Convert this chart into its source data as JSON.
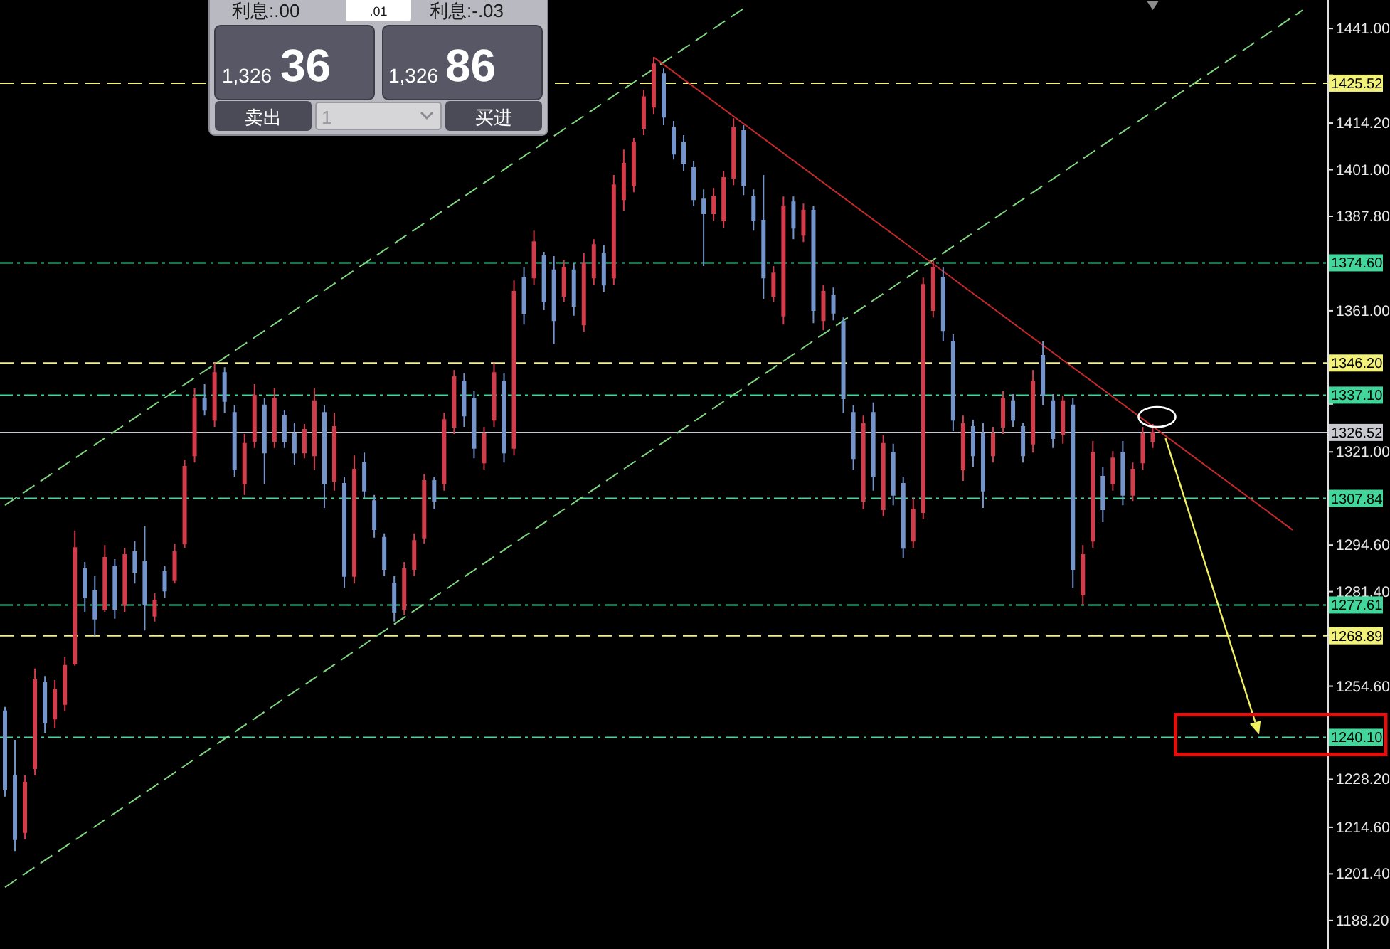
{
  "chart_data": {
    "type": "candlestick",
    "categories": [
      null,
      null,
      null,
      null,
      null,
      null,
      null,
      null,
      null,
      null,
      null,
      null,
      null,
      null,
      null,
      null,
      null,
      null,
      null,
      null,
      null,
      null,
      null,
      null,
      null,
      null,
      null,
      null,
      null,
      null,
      null,
      null,
      null,
      null,
      null,
      null,
      null,
      null,
      null,
      null,
      null,
      null,
      null,
      null,
      null,
      null,
      null,
      null,
      null,
      null,
      null,
      null,
      null,
      null,
      null,
      null,
      null,
      null,
      null,
      null,
      null,
      null,
      null,
      null,
      null,
      null,
      null,
      null,
      null,
      null,
      null,
      null,
      null,
      null,
      null,
      null,
      null,
      null,
      null,
      null,
      null,
      null,
      null,
      null,
      null,
      null,
      null,
      null,
      null,
      null,
      null,
      null,
      null,
      null,
      null,
      null,
      null,
      null,
      null,
      null,
      null,
      null,
      null,
      null,
      null,
      null,
      null,
      null,
      null,
      null,
      null,
      null,
      null,
      null,
      null,
      null,
      null,
      null,
      null,
      null,
      null,
      null,
      null,
      null,
      null,
      null,
      null,
      null,
      null,
      null,
      null,
      null,
      null
    ],
    "ohlc": [
      [
        1247.5,
        1248.7,
        1223.3,
        1225.3
      ],
      [
        1229.3,
        1239.4,
        1207.9,
        1211.2
      ],
      [
        1213.2,
        1229.3,
        1211.2,
        1227.3
      ],
      [
        1231.3,
        1259.6,
        1229.3,
        1256.3
      ],
      [
        1255.5,
        1257.5,
        1241.4,
        1244.2
      ],
      [
        1245.4,
        1256.3,
        1242.6,
        1253.5
      ],
      [
        1249.5,
        1262.8,
        1247.5,
        1260.4
      ],
      [
        1261.0,
        1298.7,
        1260.4,
        1293.8
      ],
      [
        1287.8,
        1289.8,
        1275.7,
        1279.7
      ],
      [
        1281.7,
        1285.8,
        1268.8,
        1273.7
      ],
      [
        1276.5,
        1294.6,
        1275.7,
        1291.0
      ],
      [
        1288.6,
        1290.6,
        1273.7,
        1276.5
      ],
      [
        1277.7,
        1293.8,
        1275.7,
        1291.8
      ],
      [
        1292.6,
        1295.8,
        1283.7,
        1287.0
      ],
      [
        1289.8,
        1299.9,
        1270.4,
        1277.7
      ],
      [
        1274.5,
        1280.9,
        1272.9,
        1278.9
      ],
      [
        1287.0,
        1288.6,
        1279.7,
        1281.7
      ],
      [
        1284.6,
        1295.0,
        1283.7,
        1292.6
      ],
      [
        1295.0,
        1318.8,
        1293.8,
        1316.8
      ],
      [
        1320.0,
        1339.0,
        1318.0,
        1336.2
      ],
      [
        1336.2,
        1340.2,
        1331.3,
        1332.9
      ],
      [
        1330.1,
        1346.2,
        1328.1,
        1343.4
      ],
      [
        1343.4,
        1345.0,
        1332.1,
        1335.4
      ],
      [
        1332.1,
        1334.2,
        1314.0,
        1316.0
      ],
      [
        1312.0,
        1326.1,
        1308.8,
        1323.3
      ],
      [
        1324.1,
        1340.2,
        1322.1,
        1337.0
      ],
      [
        1334.2,
        1336.2,
        1312.0,
        1320.8
      ],
      [
        1324.1,
        1339.0,
        1322.1,
        1336.2
      ],
      [
        1331.3,
        1332.9,
        1322.1,
        1324.1
      ],
      [
        1326.1,
        1329.3,
        1317.2,
        1320.8
      ],
      [
        1320.8,
        1328.9,
        1319.2,
        1327.3
      ],
      [
        1320.0,
        1339.0,
        1316.0,
        1335.4
      ],
      [
        1332.1,
        1334.2,
        1305.1,
        1312.0
      ],
      [
        1312.8,
        1332.1,
        1310.0,
        1328.1
      ],
      [
        1312.0,
        1314.0,
        1282.5,
        1285.8
      ],
      [
        1285.8,
        1320.0,
        1283.7,
        1316.0
      ],
      [
        1318.0,
        1320.8,
        1307.9,
        1310.0
      ],
      [
        1307.1,
        1308.8,
        1296.7,
        1299.1
      ],
      [
        1296.7,
        1297.9,
        1285.8,
        1287.8
      ],
      [
        1283.7,
        1285.8,
        1272.9,
        1275.7
      ],
      [
        1276.5,
        1289.8,
        1274.9,
        1287.8
      ],
      [
        1287.8,
        1297.9,
        1285.8,
        1295.8
      ],
      [
        1296.7,
        1314.8,
        1295.0,
        1312.8
      ],
      [
        1312.8,
        1314.0,
        1304.7,
        1307.1
      ],
      [
        1312.0,
        1332.1,
        1310.0,
        1330.1
      ],
      [
        1328.1,
        1344.2,
        1326.1,
        1342.2
      ],
      [
        1341.0,
        1343.4,
        1328.1,
        1331.3
      ],
      [
        1336.2,
        1338.2,
        1319.2,
        1322.1
      ],
      [
        1318.0,
        1328.1,
        1316.0,
        1326.1
      ],
      [
        1330.1,
        1346.2,
        1328.1,
        1343.4
      ],
      [
        1341.0,
        1343.4,
        1318.0,
        1320.8
      ],
      [
        1322.1,
        1369.6,
        1320.0,
        1366.4
      ],
      [
        1370.4,
        1373.3,
        1357.1,
        1360.4
      ],
      [
        1370.4,
        1383.7,
        1368.4,
        1380.5
      ],
      [
        1376.5,
        1377.7,
        1361.2,
        1363.6
      ],
      [
        1372.5,
        1376.5,
        1351.5,
        1358.3
      ],
      [
        1365.2,
        1375.3,
        1363.6,
        1373.3
      ],
      [
        1372.5,
        1374.5,
        1359.6,
        1362.4
      ],
      [
        1357.1,
        1377.3,
        1355.1,
        1374.5
      ],
      [
        1370.4,
        1381.3,
        1368.4,
        1379.7
      ],
      [
        1377.3,
        1379.7,
        1366.4,
        1368.4
      ],
      [
        1370.4,
        1399.5,
        1368.4,
        1396.6
      ],
      [
        1392.6,
        1406.7,
        1389.4,
        1402.7
      ],
      [
        1396.6,
        1410.0,
        1394.6,
        1408.7
      ],
      [
        1412.8,
        1423.7,
        1410.8,
        1421.6
      ],
      [
        1418.8,
        1432.9,
        1416.8,
        1430.9
      ],
      [
        1428.1,
        1429.7,
        1413.6,
        1416.0
      ],
      [
        1412.8,
        1414.8,
        1403.9,
        1405.5
      ],
      [
        1408.7,
        1410.8,
        1400.7,
        1402.7
      ],
      [
        1401.5,
        1403.5,
        1390.6,
        1392.6
      ],
      [
        1392.6,
        1395.4,
        1373.7,
        1388.6
      ],
      [
        1388.6,
        1395.8,
        1386.6,
        1393.4
      ],
      [
        1386.6,
        1400.7,
        1384.5,
        1398.7
      ],
      [
        1398.7,
        1415.6,
        1396.6,
        1412.8
      ],
      [
        1412.0,
        1413.6,
        1393.8,
        1396.6
      ],
      [
        1393.4,
        1395.4,
        1383.7,
        1386.6
      ],
      [
        1386.6,
        1399.5,
        1364.4,
        1370.4
      ],
      [
        1365.2,
        1373.7,
        1363.6,
        1371.6
      ],
      [
        1359.6,
        1393.4,
        1357.1,
        1390.6
      ],
      [
        1391.8,
        1393.4,
        1381.3,
        1384.5
      ],
      [
        1382.5,
        1391.4,
        1380.5,
        1389.4
      ],
      [
        1389.4,
        1390.6,
        1357.5,
        1361.2
      ],
      [
        1358.3,
        1368.4,
        1355.5,
        1366.4
      ],
      [
        1365.2,
        1367.6,
        1358.3,
        1360.4
      ],
      [
        1357.9,
        1359.1,
        1332.1,
        1336.2
      ],
      [
        1332.1,
        1334.2,
        1316.0,
        1319.2
      ],
      [
        1307.1,
        1331.3,
        1304.7,
        1328.9
      ],
      [
        1332.1,
        1335.0,
        1310.0,
        1314.0
      ],
      [
        1304.7,
        1325.7,
        1302.7,
        1323.3
      ],
      [
        1320.8,
        1323.3,
        1305.9,
        1308.8
      ],
      [
        1312.0,
        1314.0,
        1291.0,
        1293.8
      ],
      [
        1295.8,
        1307.9,
        1293.8,
        1304.7
      ],
      [
        1303.9,
        1370.4,
        1301.9,
        1368.4
      ],
      [
        1361.2,
        1375.3,
        1359.1,
        1373.3
      ],
      [
        1370.4,
        1373.3,
        1352.3,
        1355.5
      ],
      [
        1352.3,
        1354.3,
        1326.9,
        1330.1
      ],
      [
        1316.0,
        1331.3,
        1312.8,
        1328.9
      ],
      [
        1328.1,
        1330.1,
        1316.8,
        1320.0
      ],
      [
        1326.1,
        1329.3,
        1305.1,
        1310.0
      ],
      [
        1320.0,
        1328.1,
        1318.0,
        1326.1
      ],
      [
        1328.1,
        1338.2,
        1326.1,
        1336.2
      ],
      [
        1335.4,
        1337.4,
        1328.1,
        1330.1
      ],
      [
        1328.1,
        1329.3,
        1318.0,
        1320.0
      ],
      [
        1323.3,
        1344.2,
        1320.8,
        1341.0
      ],
      [
        1348.3,
        1352.3,
        1334.2,
        1337.0
      ],
      [
        1335.4,
        1337.4,
        1322.1,
        1324.9
      ],
      [
        1326.1,
        1337.0,
        1323.3,
        1335.4
      ],
      [
        1334.2,
        1336.2,
        1282.5,
        1287.8
      ],
      [
        1280.5,
        1294.6,
        1277.7,
        1291.8
      ],
      [
        1295.8,
        1324.1,
        1293.8,
        1320.8
      ],
      [
        1314.0,
        1316.8,
        1301.1,
        1304.7
      ],
      [
        1312.0,
        1321.2,
        1310.0,
        1319.2
      ],
      [
        1320.8,
        1324.1,
        1305.9,
        1308.8
      ],
      [
        1308.8,
        1318.0,
        1307.1,
        1316.0
      ],
      [
        1318.0,
        1328.1,
        1316.0,
        1326.1
      ],
      [
        1324.1,
        1328.9,
        1322.1,
        1326.5
      ],
      null,
      null,
      null,
      null,
      null,
      null,
      null,
      null,
      null,
      null,
      null,
      null,
      null,
      null,
      null,
      null,
      null
    ],
    "colors": [
      "#7494cc",
      "#7494cc",
      "#d23c4b",
      "#d23c4b",
      "#7494cc",
      "#d23c4b",
      "#d23c4b",
      "#d23c4b",
      "#7494cc",
      "#7494cc",
      "#d23c4b",
      "#7494cc",
      "#d23c4b",
      "#7494cc",
      "#7494cc",
      "#d23c4b",
      "#7494cc",
      "#d23c4b",
      "#d23c4b",
      "#d23c4b",
      "#7494cc",
      "#d23c4b",
      "#7494cc",
      "#7494cc",
      "#d23c4b",
      "#d23c4b",
      "#7494cc",
      "#d23c4b",
      "#7494cc",
      "#7494cc",
      "#d23c4b",
      "#d23c4b",
      "#7494cc",
      "#d23c4b",
      "#7494cc",
      "#d23c4b",
      "#7494cc",
      "#7494cc",
      "#7494cc",
      "#7494cc",
      "#d23c4b",
      "#d23c4b",
      "#d23c4b",
      "#7494cc",
      "#d23c4b",
      "#d23c4b",
      "#7494cc",
      "#7494cc",
      "#d23c4b",
      "#d23c4b",
      "#7494cc",
      "#d23c4b",
      "#7494cc",
      "#d23c4b",
      "#7494cc",
      "#7494cc",
      "#d23c4b",
      "#7494cc",
      "#d23c4b",
      "#d23c4b",
      "#7494cc",
      "#d23c4b",
      "#d23c4b",
      "#d23c4b",
      "#d23c4b",
      "#d23c4b",
      "#7494cc",
      "#7494cc",
      "#7494cc",
      "#7494cc",
      "#7494cc",
      "#d23c4b",
      "#d23c4b",
      "#d23c4b",
      "#7494cc",
      "#7494cc",
      "#7494cc",
      "#d23c4b",
      "#d23c4b",
      "#7494cc",
      "#d23c4b",
      "#7494cc",
      "#d23c4b",
      "#7494cc",
      "#7494cc",
      "#7494cc",
      "#d23c4b",
      "#7494cc",
      "#d23c4b",
      "#7494cc",
      "#7494cc",
      "#d23c4b",
      "#d23c4b",
      "#d23c4b",
      "#7494cc",
      "#7494cc",
      "#d23c4b",
      "#7494cc",
      "#7494cc",
      "#d23c4b",
      "#d23c4b",
      "#7494cc",
      "#7494cc",
      "#d23c4b",
      "#7494cc",
      "#7494cc",
      "#d23c4b",
      "#7494cc",
      "#d23c4b",
      "#d23c4b",
      "#7494cc",
      "#d23c4b",
      "#7494cc",
      "#d23c4b",
      "#d23c4b",
      "#d23c4b",
      null,
      null,
      null,
      null,
      null,
      null,
      null,
      null,
      null,
      null,
      null,
      null,
      null,
      null,
      null,
      null,
      null
    ],
    "ylim": [
      1180.1,
      1449.1
    ],
    "yticks": [
      {
        "value": 1441,
        "label": "1441.00"
      },
      {
        "value": 1427.8,
        "label": null
      },
      {
        "value": 1414.2,
        "label": "1414.20"
      },
      {
        "value": 1401,
        "label": "1401.00"
      },
      {
        "value": 1387.8,
        "label": "1387.80"
      },
      {
        "value": 1374.6,
        "label": null
      },
      {
        "value": 1361,
        "label": "1361.00"
      },
      {
        "value": 1347.8,
        "label": null
      },
      {
        "value": 1334.6,
        "label": null
      },
      {
        "value": 1321,
        "label": "1321.00"
      },
      {
        "value": 1307.8,
        "label": null
      },
      {
        "value": 1294.6,
        "label": "1294.60"
      },
      {
        "value": 1281.4,
        "label": "1281.40"
      },
      {
        "value": 1268.2,
        "label": null
      },
      {
        "value": 1254.6,
        "label": "1254.60"
      },
      {
        "value": 1241.4,
        "label": null
      },
      {
        "value": 1228.2,
        "label": "1228.20"
      },
      {
        "value": 1214.6,
        "label": "1214.60"
      },
      {
        "value": 1201.4,
        "label": "1201.40"
      },
      {
        "value": 1188.2,
        "label": "1188.20"
      }
    ],
    "tick_labels": "y",
    "series": [
      {
        "type": "line",
        "color": "#7fd67f",
        "line_style": "dashed",
        "values": [
          1305.9,
          null,
          null,
          null,
          null,
          null,
          null,
          null,
          null,
          null,
          null,
          null,
          null,
          null,
          null,
          null,
          null,
          null,
          null,
          null,
          null,
          null,
          null,
          null,
          null,
          null,
          null,
          null,
          null,
          null,
          null,
          null,
          null,
          null,
          null,
          null,
          null,
          null,
          null,
          null,
          null,
          null,
          null,
          null,
          null,
          null,
          null,
          null,
          null,
          null,
          null,
          null,
          null,
          null,
          null,
          null,
          null,
          null,
          null,
          null,
          null,
          null,
          null,
          null,
          null,
          null,
          null,
          null,
          null,
          null,
          null,
          null,
          null,
          null,
          1446.7,
          null,
          null,
          null,
          null,
          null,
          null,
          null,
          null,
          null,
          null,
          null,
          null,
          null,
          null,
          null,
          null,
          null,
          null,
          null,
          null,
          null,
          null,
          null,
          null,
          null,
          null,
          null,
          null,
          null,
          null,
          null,
          null,
          null,
          null,
          null,
          null,
          null,
          null,
          null,
          null,
          null,
          null,
          null,
          null,
          null,
          null,
          null,
          null,
          null,
          null,
          null,
          null,
          null,
          null,
          null,
          null,
          null,
          null
        ]
      },
      {
        "type": "line",
        "color": "#7fd67f",
        "line_style": "dashed",
        "values": [
          1197.6,
          null,
          null,
          null,
          null,
          null,
          null,
          null,
          null,
          null,
          null,
          null,
          null,
          null,
          null,
          null,
          null,
          null,
          null,
          null,
          null,
          null,
          null,
          null,
          null,
          null,
          null,
          null,
          null,
          null,
          null,
          null,
          null,
          null,
          null,
          null,
          null,
          null,
          null,
          null,
          null,
          null,
          null,
          null,
          null,
          null,
          null,
          null,
          null,
          null,
          null,
          null,
          null,
          null,
          null,
          null,
          null,
          null,
          null,
          null,
          null,
          null,
          null,
          null,
          null,
          null,
          null,
          null,
          null,
          null,
          null,
          null,
          null,
          null,
          null,
          null,
          null,
          null,
          null,
          null,
          null,
          null,
          null,
          null,
          null,
          null,
          null,
          null,
          null,
          null,
          null,
          null,
          null,
          null,
          null,
          null,
          null,
          null,
          null,
          null,
          null,
          null,
          null,
          null,
          null,
          null,
          null,
          null,
          null,
          null,
          null,
          null,
          null,
          null,
          null,
          null,
          null,
          null,
          null,
          null,
          null,
          null,
          null,
          null,
          null,
          null,
          null,
          null,
          null,
          null,
          1446.2,
          null,
          null
        ]
      },
      {
        "type": "line",
        "color": "#c42a2a",
        "line_style": "solid",
        "values": [
          null,
          null,
          null,
          null,
          null,
          null,
          null,
          null,
          null,
          null,
          null,
          null,
          null,
          null,
          null,
          null,
          null,
          null,
          null,
          null,
          null,
          null,
          null,
          null,
          null,
          null,
          null,
          null,
          null,
          null,
          null,
          null,
          null,
          null,
          null,
          null,
          null,
          null,
          null,
          null,
          null,
          null,
          null,
          null,
          null,
          null,
          null,
          null,
          null,
          null,
          null,
          null,
          null,
          null,
          null,
          null,
          null,
          null,
          null,
          null,
          null,
          null,
          null,
          null,
          null,
          1432.9,
          null,
          null,
          null,
          null,
          null,
          null,
          null,
          null,
          null,
          null,
          null,
          null,
          null,
          null,
          null,
          null,
          null,
          null,
          null,
          null,
          null,
          null,
          null,
          null,
          null,
          null,
          null,
          null,
          null,
          null,
          null,
          null,
          null,
          null,
          null,
          null,
          null,
          null,
          null,
          null,
          null,
          null,
          null,
          null,
          null,
          null,
          null,
          null,
          null,
          null,
          null,
          null,
          null,
          null,
          null,
          null,
          null,
          null,
          null,
          null,
          null,
          null,
          null,
          1298.9,
          null,
          null,
          null
        ]
      }
    ],
    "ref_lines": [
      {
        "axis": "y",
        "value": 1425.52,
        "label": "1425.52",
        "color": "#f2f27a",
        "line_style": "dashed"
      },
      {
        "axis": "y",
        "value": 1374.6,
        "label": "1374.60",
        "color": "#43d69b",
        "line_style": "dashdot"
      },
      {
        "axis": "y",
        "value": 1346.2,
        "label": "1346.20",
        "color": "#f2f27a",
        "line_style": "dashed"
      },
      {
        "axis": "y",
        "value": 1337.1,
        "label": "1337.10",
        "color": "#43d69b",
        "line_style": "dashdot"
      },
      {
        "axis": "y",
        "value": 1326.52,
        "label": "1326.52",
        "color": "#c8c8d0",
        "line_style": "solid"
      },
      {
        "axis": "y",
        "value": 1307.84,
        "label": "1307.84",
        "color": "#43d69b",
        "line_style": "dashdot"
      },
      {
        "axis": "y",
        "value": 1277.61,
        "label": "1277.61",
        "color": "#43d69b",
        "line_style": "dashdot"
      },
      {
        "axis": "y",
        "value": 1268.89,
        "label": "1268.89",
        "color": "#f2f27a",
        "line_style": "dashed"
      },
      {
        "axis": "y",
        "value": 1240.1,
        "label": "1240.10",
        "color": "#43d69b",
        "line_style": "dashdot"
      }
    ],
    "annotations": [
      "利息:.00",
      ".01",
      "利息:-.03",
      "1,326",
      "36",
      "1,326",
      "86",
      "卖出",
      "1",
      "买进"
    ]
  }
}
